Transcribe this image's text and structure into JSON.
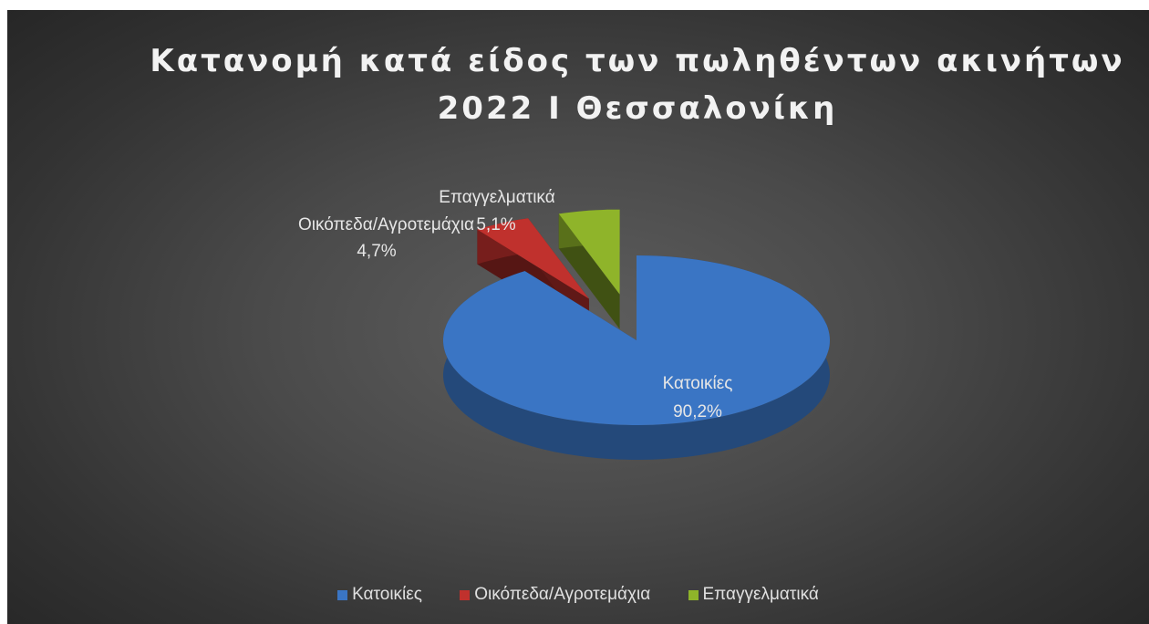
{
  "chart_data": {
    "type": "pie",
    "title_lines": [
      "Κατανομή κατά είδος των πωληθέντων ακινήτων",
      "2022 Ι Θεσσαλονίκη"
    ],
    "categories": [
      "Κατοικίες",
      "Οικόπεδα/Αγροτεμάχια",
      "Επαγγελματικά"
    ],
    "values": [
      90.2,
      4.7,
      5.1
    ],
    "value_labels": [
      "90,2%",
      "4,7%",
      "5,1%"
    ],
    "colors": [
      "#3a75c4",
      "#c0312d",
      "#8fb42a"
    ],
    "legend_position": "bottom",
    "style": "3d-exploded"
  }
}
